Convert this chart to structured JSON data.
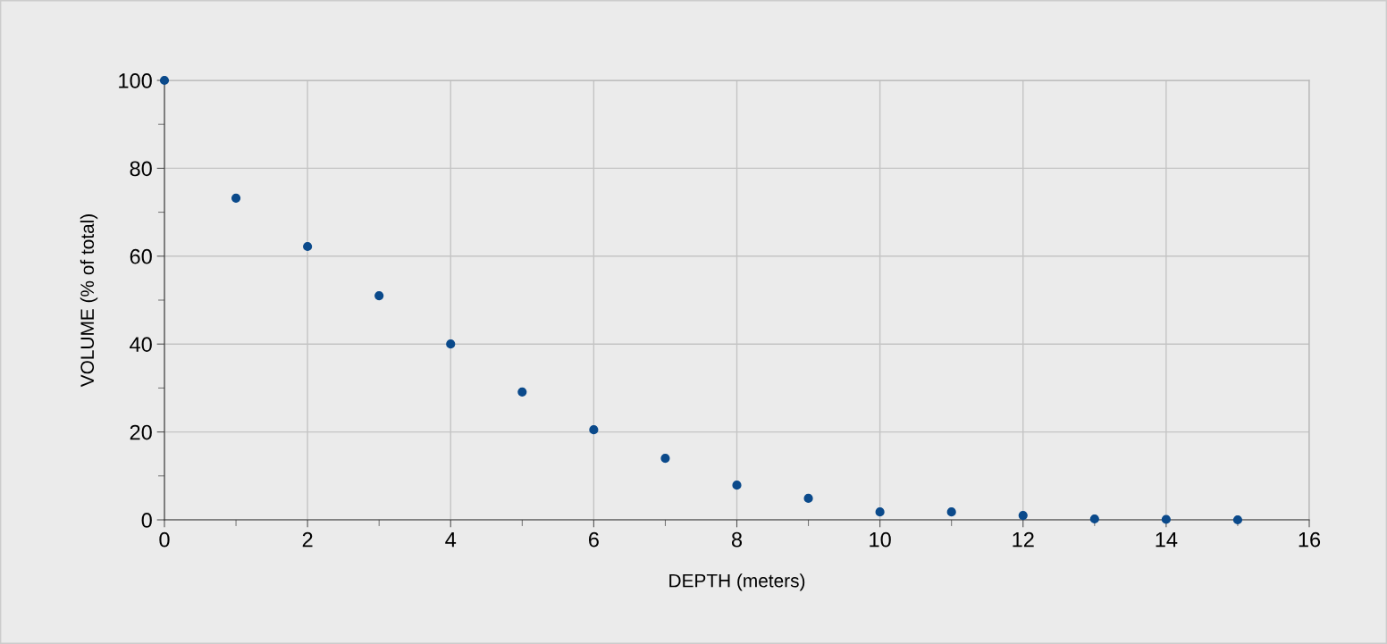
{
  "chart_data": {
    "type": "scatter",
    "xlabel": "DEPTH (meters)",
    "ylabel": "VOLUME (% of total)",
    "x": [
      0,
      1,
      2,
      3,
      4,
      5,
      6,
      7,
      8,
      9,
      10,
      11,
      12,
      13,
      14,
      15
    ],
    "series": [
      {
        "color": "#0b4a8b",
        "values": [
          100,
          73.2,
          62.2,
          51.0,
          40.0,
          29.1,
          20.5,
          14.0,
          7.9,
          4.9,
          1.8,
          1.8,
          1.0,
          0.2,
          0.1,
          0
        ]
      }
    ],
    "xlim": [
      0,
      16
    ],
    "xticks": [
      0,
      2,
      4,
      6,
      8,
      10,
      12,
      14,
      16
    ],
    "ylim": [
      0,
      100
    ],
    "yticks": [
      0,
      20,
      40,
      60,
      80,
      100
    ],
    "grid": true,
    "marker": "circle"
  }
}
